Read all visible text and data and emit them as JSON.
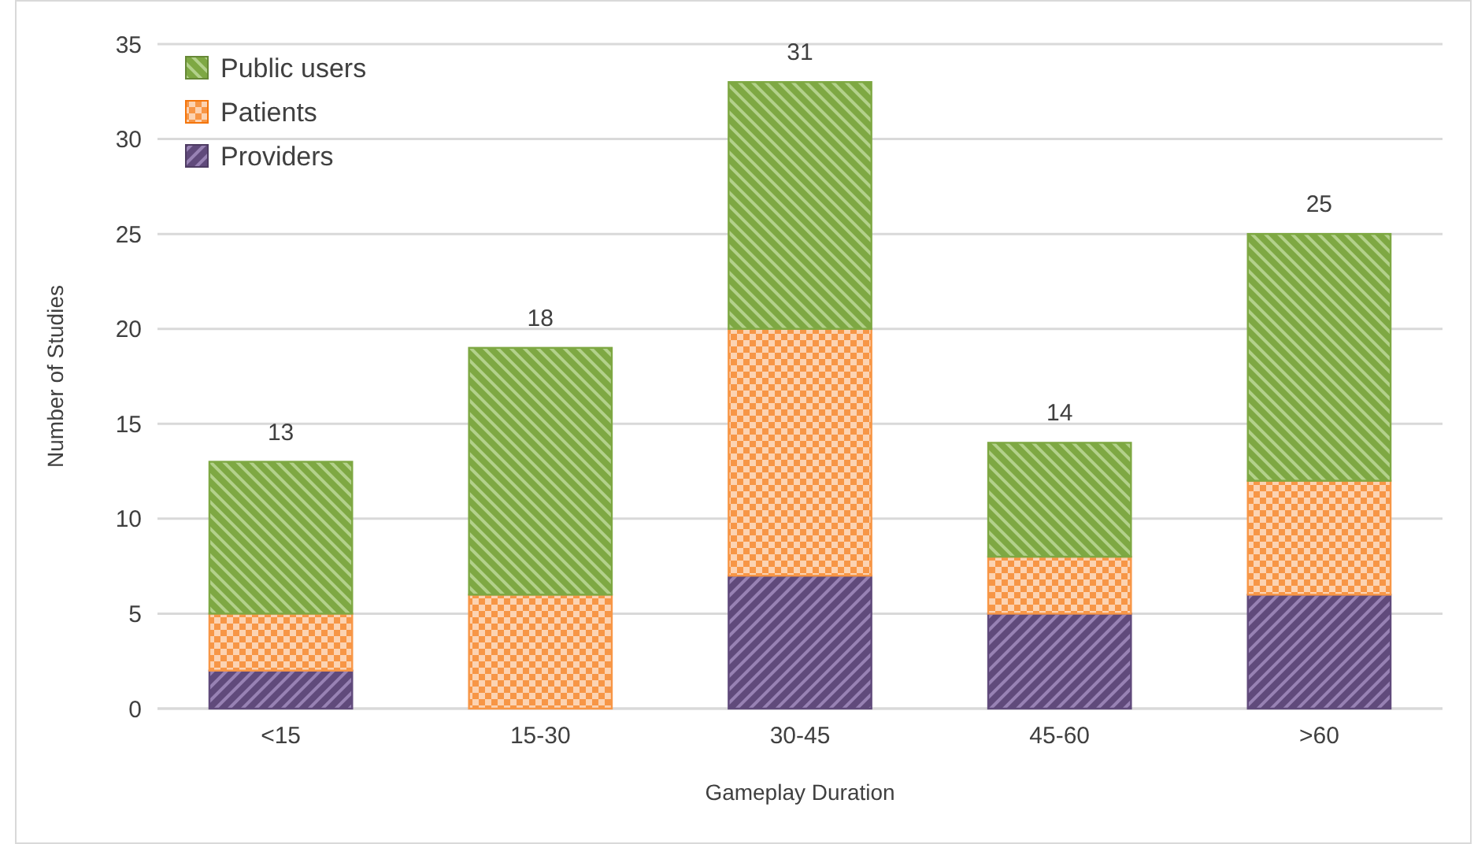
{
  "chart_data": {
    "type": "bar",
    "stacked": true,
    "xlabel": "Gameplay Duration",
    "ylabel": "Number of Studies",
    "categories": [
      "<15",
      "15-30",
      "30-45",
      "45-60",
      ">60"
    ],
    "series": [
      {
        "name": "Providers",
        "color": "#604a7b",
        "values": [
          2,
          0,
          7,
          5,
          6
        ]
      },
      {
        "name": "Patients",
        "color": "#f79646",
        "values": [
          3,
          6,
          13,
          3,
          6
        ]
      },
      {
        "name": "Public users",
        "color": "#7ea843",
        "values": [
          8,
          13,
          13,
          6,
          13
        ]
      }
    ],
    "totals": [
      "13",
      "18",
      "31",
      "14",
      "25"
    ],
    "ylim": [
      0,
      35
    ],
    "yticks": [
      0,
      5,
      10,
      15,
      20,
      25,
      30,
      35
    ],
    "grid": "y",
    "legend": "top left"
  }
}
